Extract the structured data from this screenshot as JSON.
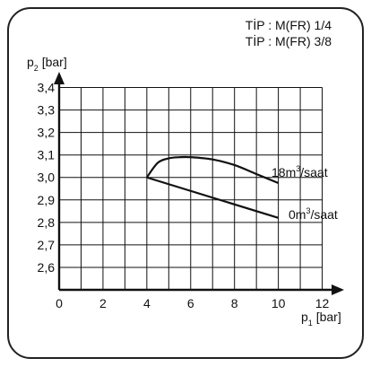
{
  "type_labels": [
    "TİP : M(FR) 1/4",
    "TİP : M(FR) 3/8"
  ],
  "chart_data": {
    "type": "line",
    "ylabel": {
      "main": "p",
      "sub": "2",
      "unit": " [bar]"
    },
    "xlabel": {
      "main": "p",
      "sub": "1",
      "unit": " [bar]"
    },
    "xlim": [
      0,
      13
    ],
    "ylim": [
      2.5,
      3.47
    ],
    "grid": true,
    "x_tick_values": [
      0,
      2,
      4,
      6,
      8,
      10,
      12
    ],
    "x_tick_labels": [
      "0",
      "2",
      "4",
      "6",
      "8",
      "10",
      "12"
    ],
    "x_grid_step": 1,
    "y_tick_values": [
      2.6,
      2.7,
      2.8,
      2.9,
      3.0,
      3.1,
      3.2,
      3.3,
      3.4
    ],
    "y_tick_labels": [
      "2,6",
      "2,7",
      "2,8",
      "2,9",
      "3,0",
      "3,1",
      "3,2",
      "3,3",
      "3,4"
    ],
    "series": [
      {
        "label": {
          "pre": "18m",
          "sup": "3",
          "post": "/saat"
        },
        "x": [
          4.0,
          4.5,
          5.0,
          5.5,
          6.0,
          7.0,
          8.0,
          9.0,
          10.0
        ],
        "y": [
          3.0,
          3.065,
          3.085,
          3.09,
          3.09,
          3.08,
          3.055,
          3.015,
          2.975
        ]
      },
      {
        "label": {
          "pre": "0m",
          "sup": "3",
          "post": "/saat"
        },
        "x": [
          4.0,
          10.0
        ],
        "y": [
          3.0,
          2.82
        ]
      }
    ]
  }
}
